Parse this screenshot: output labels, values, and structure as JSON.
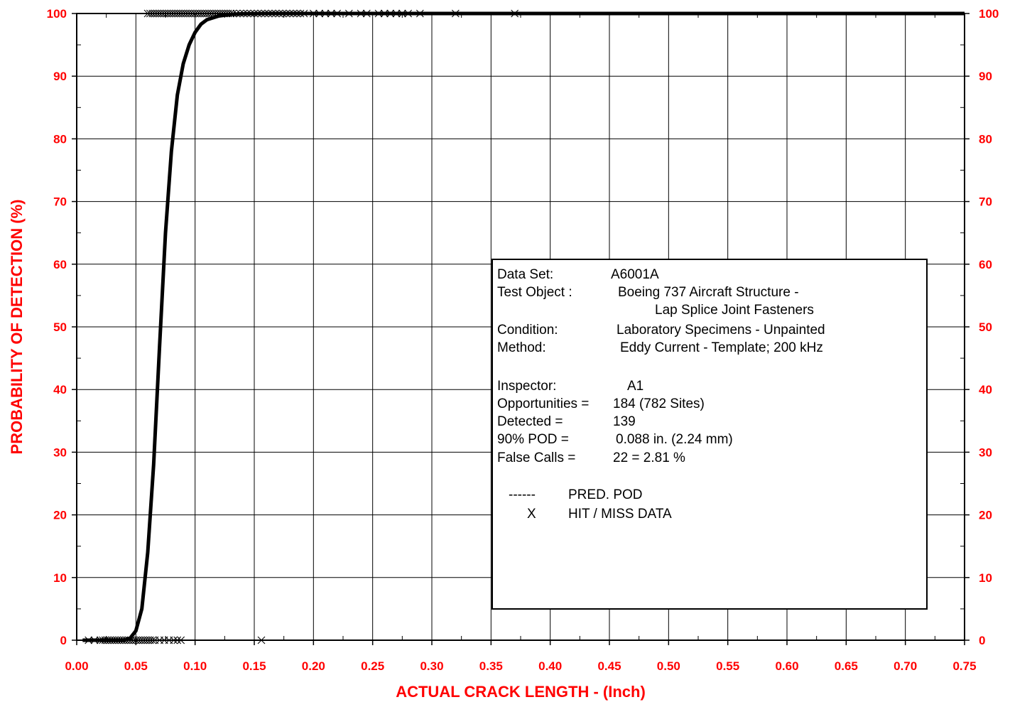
{
  "chart_data": {
    "type": "line",
    "xlabel": "ACTUAL CRACK LENGTH - (Inch)",
    "ylabel": "PROBABILITY OF DETECTION (%)",
    "xlim": [
      0.0,
      0.75
    ],
    "ylim": [
      0,
      100
    ],
    "x_ticks": [
      0.0,
      0.05,
      0.1,
      0.15,
      0.2,
      0.25,
      0.3,
      0.35,
      0.4,
      0.45,
      0.5,
      0.55,
      0.6,
      0.65,
      0.7,
      0.75
    ],
    "x_tick_labels": [
      "0.00",
      "0.05",
      "0.10",
      "0.15",
      "0.20",
      "0.25",
      "0.30",
      "0.35",
      "0.40",
      "0.45",
      "0.50",
      "0.55",
      "0.60",
      "0.65",
      "0.70",
      "0.75"
    ],
    "y_ticks": [
      0,
      10,
      20,
      30,
      40,
      50,
      60,
      70,
      80,
      90,
      100
    ],
    "y_tick_labels": [
      "0",
      "10",
      "20",
      "30",
      "40",
      "50",
      "60",
      "70",
      "80",
      "90",
      "100"
    ],
    "grid": true,
    "secondary_y_axis": true,
    "series": [
      {
        "name": "PRED. POD",
        "kind": "line",
        "x": [
          0.005,
          0.04,
          0.045,
          0.05,
          0.055,
          0.06,
          0.065,
          0.07,
          0.075,
          0.08,
          0.085,
          0.09,
          0.095,
          0.1,
          0.105,
          0.11,
          0.12,
          0.13,
          0.14,
          0.16,
          0.2,
          0.3,
          0.75
        ],
        "y": [
          0,
          0,
          0.3,
          1.5,
          5,
          14,
          28,
          47,
          65,
          78,
          87,
          92,
          95,
          97,
          98.3,
          99,
          99.6,
          99.85,
          99.95,
          100,
          100,
          100,
          100
        ]
      },
      {
        "name": "HIT / MISS DATA",
        "kind": "scatter",
        "hits_y": 100,
        "misses_y": 0,
        "hits_x": [
          0.06,
          0.062,
          0.064,
          0.066,
          0.068,
          0.07,
          0.072,
          0.074,
          0.076,
          0.078,
          0.08,
          0.082,
          0.084,
          0.086,
          0.088,
          0.09,
          0.092,
          0.094,
          0.096,
          0.098,
          0.1,
          0.102,
          0.104,
          0.106,
          0.108,
          0.11,
          0.112,
          0.114,
          0.116,
          0.118,
          0.12,
          0.122,
          0.124,
          0.126,
          0.128,
          0.13,
          0.132,
          0.135,
          0.138,
          0.141,
          0.144,
          0.147,
          0.15,
          0.153,
          0.156,
          0.159,
          0.162,
          0.165,
          0.168,
          0.171,
          0.174,
          0.177,
          0.18,
          0.183,
          0.186,
          0.189,
          0.192,
          0.2,
          0.205,
          0.21,
          0.215,
          0.22,
          0.23,
          0.24,
          0.245,
          0.255,
          0.26,
          0.265,
          0.27,
          0.275,
          0.28,
          0.29,
          0.32,
          0.37
        ],
        "misses_x": [
          0.01,
          0.015,
          0.02,
          0.022,
          0.024,
          0.026,
          0.028,
          0.03,
          0.032,
          0.034,
          0.036,
          0.038,
          0.04,
          0.042,
          0.044,
          0.046,
          0.048,
          0.05,
          0.052,
          0.054,
          0.056,
          0.058,
          0.06,
          0.062,
          0.064,
          0.066,
          0.07,
          0.074,
          0.078,
          0.082,
          0.085,
          0.088,
          0.156
        ]
      }
    ],
    "legend_position": "inside-right",
    "info_box": [
      {
        "label": "Data Set:",
        "value": "A6001A"
      },
      {
        "label": "Test Object :",
        "value": "Boeing 737 Aircraft Structure -"
      },
      {
        "label": "",
        "value": "Lap Splice Joint Fasteners"
      },
      {
        "label": "Condition:",
        "value": "Laboratory Specimens - Unpainted"
      },
      {
        "label": "Method:",
        "value": "Eddy Current - Template; 200 kHz"
      },
      {
        "label": "Inspector:",
        "value": "A1"
      },
      {
        "label": "Opportunities =",
        "value": "184 (782 Sites)"
      },
      {
        "label": "Detected =",
        "value": "139"
      },
      {
        "label": "90% POD =",
        "value": "0.088  in.  (2.24 mm)"
      },
      {
        "label": "False Calls =",
        "value": "22 = 2.81 %"
      }
    ],
    "legend": [
      {
        "symbol": "------",
        "label": "PRED. POD"
      },
      {
        "symbol": "X",
        "label": "HIT / MISS DATA"
      }
    ]
  }
}
